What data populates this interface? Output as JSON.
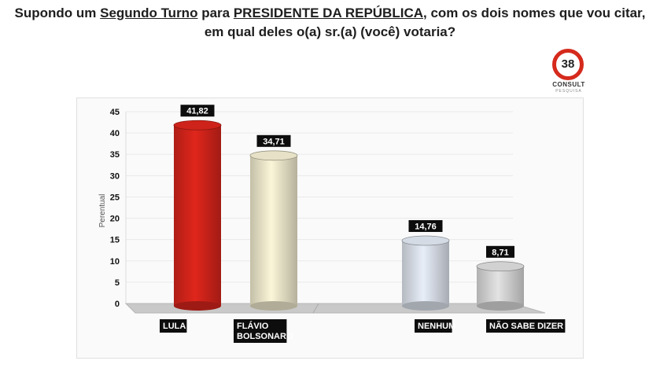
{
  "title": {
    "line1_pre": "Supondo um ",
    "line1_u1": "Segundo Turno",
    "line1_mid": " para ",
    "line1_u2": "PRESIDENTE DA REPÚBLICA",
    "line1_post": ", com os dois nomes que vou citar,",
    "line2": "em qual deles o(a) sr.(a) (você) votaria?"
  },
  "logo": {
    "number": "38",
    "name": "CONSULT",
    "sub": "PESQUISA"
  },
  "chart_data": {
    "type": "bar",
    "categories": [
      "LULA",
      "FLÁVIO BOLSONARO",
      "",
      "NENHUM",
      "NÃO SABE DIZER"
    ],
    "category_lines": [
      [
        "LULA"
      ],
      [
        "FLÁVIO",
        "BOLSONARO"
      ],
      [
        ""
      ],
      [
        "NENHUM"
      ],
      [
        "NÃO SABE DIZER"
      ]
    ],
    "values": [
      41.82,
      34.71,
      null,
      14.76,
      8.71
    ],
    "value_labels": [
      "41,82",
      "34,71",
      "",
      "14,76",
      "8,71"
    ],
    "colors": [
      "#e0261c",
      "#fbf6d8",
      "",
      "#e8eef8",
      "#e3e3e3"
    ],
    "ylabel": "Perentual",
    "yticks": [
      0,
      5,
      10,
      15,
      20,
      25,
      30,
      35,
      40,
      45
    ],
    "ylim": [
      0,
      45
    ],
    "grid": true
  }
}
